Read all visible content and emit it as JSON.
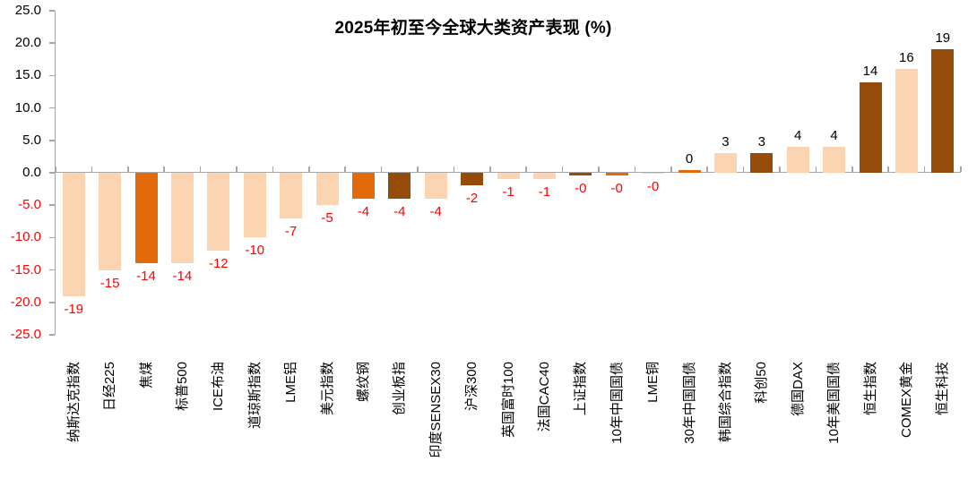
{
  "chart": {
    "title": "2025年初至今全球大类资产表现 (%)"
  },
  "chart_data": {
    "type": "bar",
    "title": "2025年初至今全球大类资产表现 (%)",
    "xlabel": "",
    "ylabel": "",
    "ylim": [
      -25,
      25
    ],
    "ytick_step": 5,
    "ytick_labels": [
      "25.0",
      "20.0",
      "15.0",
      "10.0",
      "5.0",
      "0.0",
      "-5.0",
      "-10.0",
      "-15.0",
      "-20.0",
      "-25.0"
    ],
    "grid": false,
    "legend": false,
    "categories": [
      "纳斯达克指数",
      "日经225",
      "焦煤",
      "标普500",
      "ICE布油",
      "道琼斯指数",
      "LME铝",
      "美元指数",
      "螺纹钢",
      "创业板指",
      "印度SENSEX30",
      "沪深300",
      "英国富时100",
      "法国CAC40",
      "上证指数",
      "10年中国国债",
      "LME铜",
      "30年中国国债",
      "韩国综合指数",
      "科创50",
      "德国DAX",
      "10年美国国债",
      "恒生指数",
      "COMEX黄金",
      "恒生科技"
    ],
    "values": [
      -19,
      -15,
      -14,
      -14,
      -12,
      -10,
      -7,
      -5,
      -4,
      -4,
      -4,
      -2,
      -1,
      -1,
      -0.4,
      -0.4,
      -0.05,
      0.4,
      3,
      3,
      4,
      4,
      14,
      16,
      19
    ],
    "data_labels": [
      "-19",
      "-15",
      "-14",
      "-14",
      "-12",
      "-10",
      "-7",
      "-5",
      "-4",
      "-4",
      "-4",
      "-2",
      "-1",
      "-1",
      "-0",
      "-0",
      "-0",
      "0",
      "3",
      "3",
      "4",
      "4",
      "14",
      "16",
      "19"
    ],
    "bar_colors": [
      "light",
      "light",
      "orange",
      "light",
      "light",
      "light",
      "light",
      "light",
      "orange",
      "brown",
      "light",
      "brown",
      "light",
      "light",
      "brown",
      "orange",
      "light",
      "orange",
      "light",
      "brown",
      "light",
      "light",
      "brown",
      "light",
      "brown"
    ],
    "palette": {
      "light": "#FBD5B2",
      "orange": "#E26A0A",
      "brown": "#954B0A"
    },
    "axis_color": "#A6A6A6",
    "negative_label_color": "#FF0000",
    "positive_label_color": "#000000"
  }
}
